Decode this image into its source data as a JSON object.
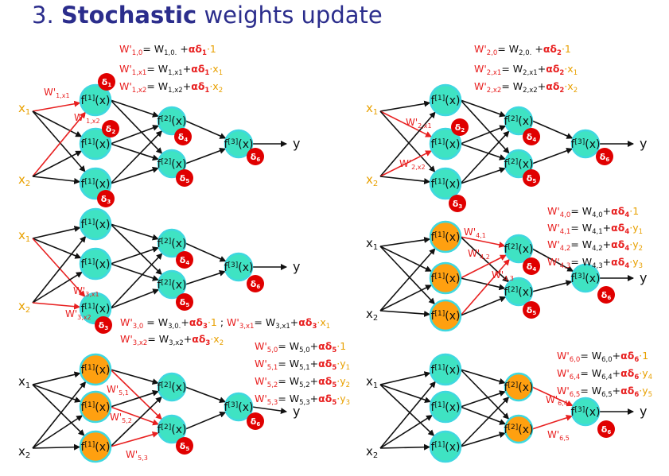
{
  "title": {
    "number": "3. ",
    "bold": "Stochastic",
    "rest": " weights update"
  },
  "colors": {
    "title": "#2b2d8c",
    "node_green": "#3fe3c3",
    "node_orange": "#ffa010",
    "node_border": "#3fd8e0",
    "delta_red": "#e00000",
    "edge": "#111111",
    "edge_red": "#e82020",
    "input_orange": "#e8a000",
    "formula_red": "#e82020",
    "alpha_red": "#e82020",
    "delta_text_red": "#e82020",
    "accent_orange": "#e8a000"
  },
  "labels": {
    "x1": "x",
    "x1_sub": "1",
    "x2": "x",
    "x2_sub": "2",
    "y": "y",
    "n1": "f[1](x)",
    "n2": "f[2](x)",
    "n3": "f[3](x)",
    "d1": "δ1",
    "d2": "δ2",
    "d3": "δ3",
    "d4": "δ4",
    "d5": "δ5",
    "d6": "δ6"
  },
  "panels": [
    {
      "id": "p1",
      "edge_labels": [
        [
          "W'",
          "1,x1"
        ],
        [
          "W'",
          "1,x2"
        ]
      ],
      "formulas": [
        [
          [
            "r",
            "W'"
          ],
          [
            "rs",
            "1,0"
          ],
          [
            "k",
            "= W"
          ],
          [
            "ks",
            "1,0."
          ],
          [
            "k",
            "  +"
          ],
          [
            "a",
            "α"
          ],
          [
            "d",
            "δ"
          ],
          [
            "ds",
            "1"
          ],
          [
            "o",
            "·1"
          ]
        ],
        [
          [
            "r",
            "W'"
          ],
          [
            "rs",
            "1,x1"
          ],
          [
            "k",
            "= W"
          ],
          [
            "ks",
            "1,x1"
          ],
          [
            "k",
            "+"
          ],
          [
            "a",
            "α"
          ],
          [
            "d",
            "δ"
          ],
          [
            "ds",
            "1"
          ],
          [
            "o",
            "·x"
          ],
          [
            "os",
            "1"
          ]
        ],
        [
          [
            "r",
            "W'"
          ],
          [
            "rs",
            "1,x2"
          ],
          [
            "k",
            "= W"
          ],
          [
            "ks",
            "1,x2"
          ],
          [
            "k",
            "+"
          ],
          [
            "a",
            "α"
          ],
          [
            "d",
            "δ"
          ],
          [
            "ds",
            "1"
          ],
          [
            "o",
            "·x"
          ],
          [
            "os",
            "2"
          ]
        ]
      ]
    },
    {
      "id": "p2",
      "edge_labels": [
        [
          "W'",
          "2,x1"
        ],
        [
          "W'",
          "2,x2"
        ]
      ],
      "formulas": [
        [
          [
            "r",
            "W'"
          ],
          [
            "rs",
            "2,0"
          ],
          [
            "k",
            "= W"
          ],
          [
            "ks",
            "2,0."
          ],
          [
            "k",
            "  +"
          ],
          [
            "a",
            "α"
          ],
          [
            "d",
            "δ"
          ],
          [
            "ds",
            "2"
          ],
          [
            "o",
            "·1"
          ]
        ],
        [
          [
            "r",
            "W'"
          ],
          [
            "rs",
            "2,x1"
          ],
          [
            "k",
            "= W"
          ],
          [
            "ks",
            "2,x1"
          ],
          [
            "k",
            "+"
          ],
          [
            "a",
            "α"
          ],
          [
            "d",
            "δ"
          ],
          [
            "ds",
            "2"
          ],
          [
            "o",
            "·x"
          ],
          [
            "os",
            "1"
          ]
        ],
        [
          [
            "r",
            "W'"
          ],
          [
            "rs",
            "2,x2"
          ],
          [
            "k",
            "= W"
          ],
          [
            "ks",
            "2,x2"
          ],
          [
            "k",
            "+"
          ],
          [
            "a",
            "α"
          ],
          [
            "d",
            "δ"
          ],
          [
            "ds",
            "2"
          ],
          [
            "o",
            "·x"
          ],
          [
            "os",
            "2"
          ]
        ]
      ]
    },
    {
      "id": "p3",
      "edge_labels": [
        [
          "W'",
          "3,x1"
        ],
        [
          "W'",
          "3,x2"
        ]
      ],
      "formulas": [
        [
          [
            "r",
            "W'"
          ],
          [
            "rs",
            "3,0"
          ],
          [
            "k",
            " = W"
          ],
          [
            "ks",
            "3,0."
          ],
          [
            "k",
            "+"
          ],
          [
            "a",
            "α"
          ],
          [
            "d",
            "δ"
          ],
          [
            "ds",
            "3"
          ],
          [
            "o",
            "·1"
          ],
          [
            "k",
            " ; "
          ],
          [
            "r",
            "W'"
          ],
          [
            "rs",
            "3,x1"
          ],
          [
            "k",
            "= W"
          ],
          [
            "ks",
            "3,x1"
          ],
          [
            "k",
            "+"
          ],
          [
            "a",
            "α"
          ],
          [
            "d",
            "δ"
          ],
          [
            "ds",
            "3"
          ],
          [
            "o",
            "·x"
          ],
          [
            "os",
            "1"
          ]
        ],
        [
          [
            "r",
            "W'"
          ],
          [
            "rs",
            "3,x2"
          ],
          [
            "k",
            "= W"
          ],
          [
            "ks",
            "3,x2"
          ],
          [
            "k",
            "+"
          ],
          [
            "a",
            "α"
          ],
          [
            "d",
            "δ"
          ],
          [
            "ds",
            "3"
          ],
          [
            "o",
            "·x"
          ],
          [
            "os",
            "2"
          ]
        ]
      ]
    },
    {
      "id": "p4",
      "edge_labels": [
        [
          "W'",
          "4,1"
        ],
        [
          "W'",
          "4,2"
        ],
        [
          "W'",
          "4,3"
        ]
      ],
      "formulas": [
        [
          [
            "r",
            "W'"
          ],
          [
            "rs",
            "4,0"
          ],
          [
            "k",
            "= W"
          ],
          [
            "ks",
            "4,0"
          ],
          [
            "k",
            "+"
          ],
          [
            "a",
            "α"
          ],
          [
            "d",
            "δ"
          ],
          [
            "ds",
            "4"
          ],
          [
            "o",
            "·1"
          ]
        ],
        [
          [
            "r",
            "W'"
          ],
          [
            "rs",
            "4,1"
          ],
          [
            "k",
            "= W"
          ],
          [
            "ks",
            "4,1"
          ],
          [
            "k",
            "+"
          ],
          [
            "a",
            "α"
          ],
          [
            "d",
            "δ"
          ],
          [
            "ds",
            "4"
          ],
          [
            "o",
            "·y"
          ],
          [
            "os",
            "1"
          ]
        ],
        [
          [
            "r",
            "W'"
          ],
          [
            "rs",
            "4,2"
          ],
          [
            "k",
            "= W"
          ],
          [
            "ks",
            "4,2"
          ],
          [
            "k",
            "+"
          ],
          [
            "a",
            "α"
          ],
          [
            "d",
            "δ"
          ],
          [
            "ds",
            "4"
          ],
          [
            "o",
            "·y"
          ],
          [
            "os",
            "2"
          ]
        ],
        [
          [
            "r",
            "W'"
          ],
          [
            "rs",
            "4,3"
          ],
          [
            "k",
            "= W"
          ],
          [
            "ks",
            "4,3"
          ],
          [
            "k",
            "+"
          ],
          [
            "a",
            "α"
          ],
          [
            "d",
            "δ"
          ],
          [
            "ds",
            "4"
          ],
          [
            "o",
            "·y"
          ],
          [
            "os",
            "3"
          ]
        ]
      ]
    },
    {
      "id": "p5",
      "edge_labels": [
        [
          "W'",
          "5,1"
        ],
        [
          "W'",
          "5,2"
        ],
        [
          "W'",
          "5,3"
        ]
      ],
      "formulas": [
        [
          [
            "r",
            "W'"
          ],
          [
            "rs",
            "5,0"
          ],
          [
            "k",
            "= W"
          ],
          [
            "ks",
            "5,0"
          ],
          [
            "k",
            "+"
          ],
          [
            "a",
            "α"
          ],
          [
            "d",
            "δ"
          ],
          [
            "ds",
            "5"
          ],
          [
            "o",
            "·1"
          ]
        ],
        [
          [
            "r",
            "W'"
          ],
          [
            "rs",
            "5,1"
          ],
          [
            "k",
            "= W"
          ],
          [
            "ks",
            "5,1"
          ],
          [
            "k",
            "+"
          ],
          [
            "a",
            "α"
          ],
          [
            "d",
            "δ"
          ],
          [
            "ds",
            "5"
          ],
          [
            "o",
            "·y"
          ],
          [
            "os",
            "1"
          ]
        ],
        [
          [
            "r",
            "W'"
          ],
          [
            "rs",
            "5,2"
          ],
          [
            "k",
            "= W"
          ],
          [
            "ks",
            "5,2"
          ],
          [
            "k",
            "+"
          ],
          [
            "a",
            "α"
          ],
          [
            "d",
            "δ"
          ],
          [
            "ds",
            "5"
          ],
          [
            "o",
            "·y"
          ],
          [
            "os",
            "2"
          ]
        ],
        [
          [
            "r",
            "W'"
          ],
          [
            "rs",
            "5,3"
          ],
          [
            "k",
            "= W"
          ],
          [
            "ks",
            "5,3"
          ],
          [
            "k",
            "+"
          ],
          [
            "a",
            "α"
          ],
          [
            "d",
            "δ"
          ],
          [
            "ds",
            "5"
          ],
          [
            "o",
            "·y"
          ],
          [
            "os",
            "3"
          ]
        ]
      ]
    },
    {
      "id": "p6",
      "edge_labels": [
        [
          "W'",
          "6,4"
        ],
        [
          "W'",
          "6,5"
        ]
      ],
      "formulas": [
        [
          [
            "r",
            "W'"
          ],
          [
            "rs",
            "6,0"
          ],
          [
            "k",
            "= W"
          ],
          [
            "ks",
            "6,0"
          ],
          [
            "k",
            "+"
          ],
          [
            "a",
            "α"
          ],
          [
            "d",
            "δ"
          ],
          [
            "ds",
            "6"
          ],
          [
            "o",
            "·1"
          ]
        ],
        [
          [
            "r",
            "W'"
          ],
          [
            "rs",
            "6,4"
          ],
          [
            "k",
            "= W"
          ],
          [
            "ks",
            "6,4"
          ],
          [
            "k",
            "+"
          ],
          [
            "a",
            "α"
          ],
          [
            "d",
            "δ"
          ],
          [
            "ds",
            "6"
          ],
          [
            "o",
            "·y"
          ],
          [
            "os",
            "4"
          ]
        ],
        [
          [
            "r",
            "W'"
          ],
          [
            "rs",
            "6,5"
          ],
          [
            "k",
            "= W"
          ],
          [
            "ks",
            "6,5"
          ],
          [
            "k",
            "+"
          ],
          [
            "a",
            "α"
          ],
          [
            "d",
            "δ"
          ],
          [
            "ds",
            "6"
          ],
          [
            "o",
            "·y"
          ],
          [
            "os",
            "5"
          ]
        ]
      ]
    }
  ]
}
